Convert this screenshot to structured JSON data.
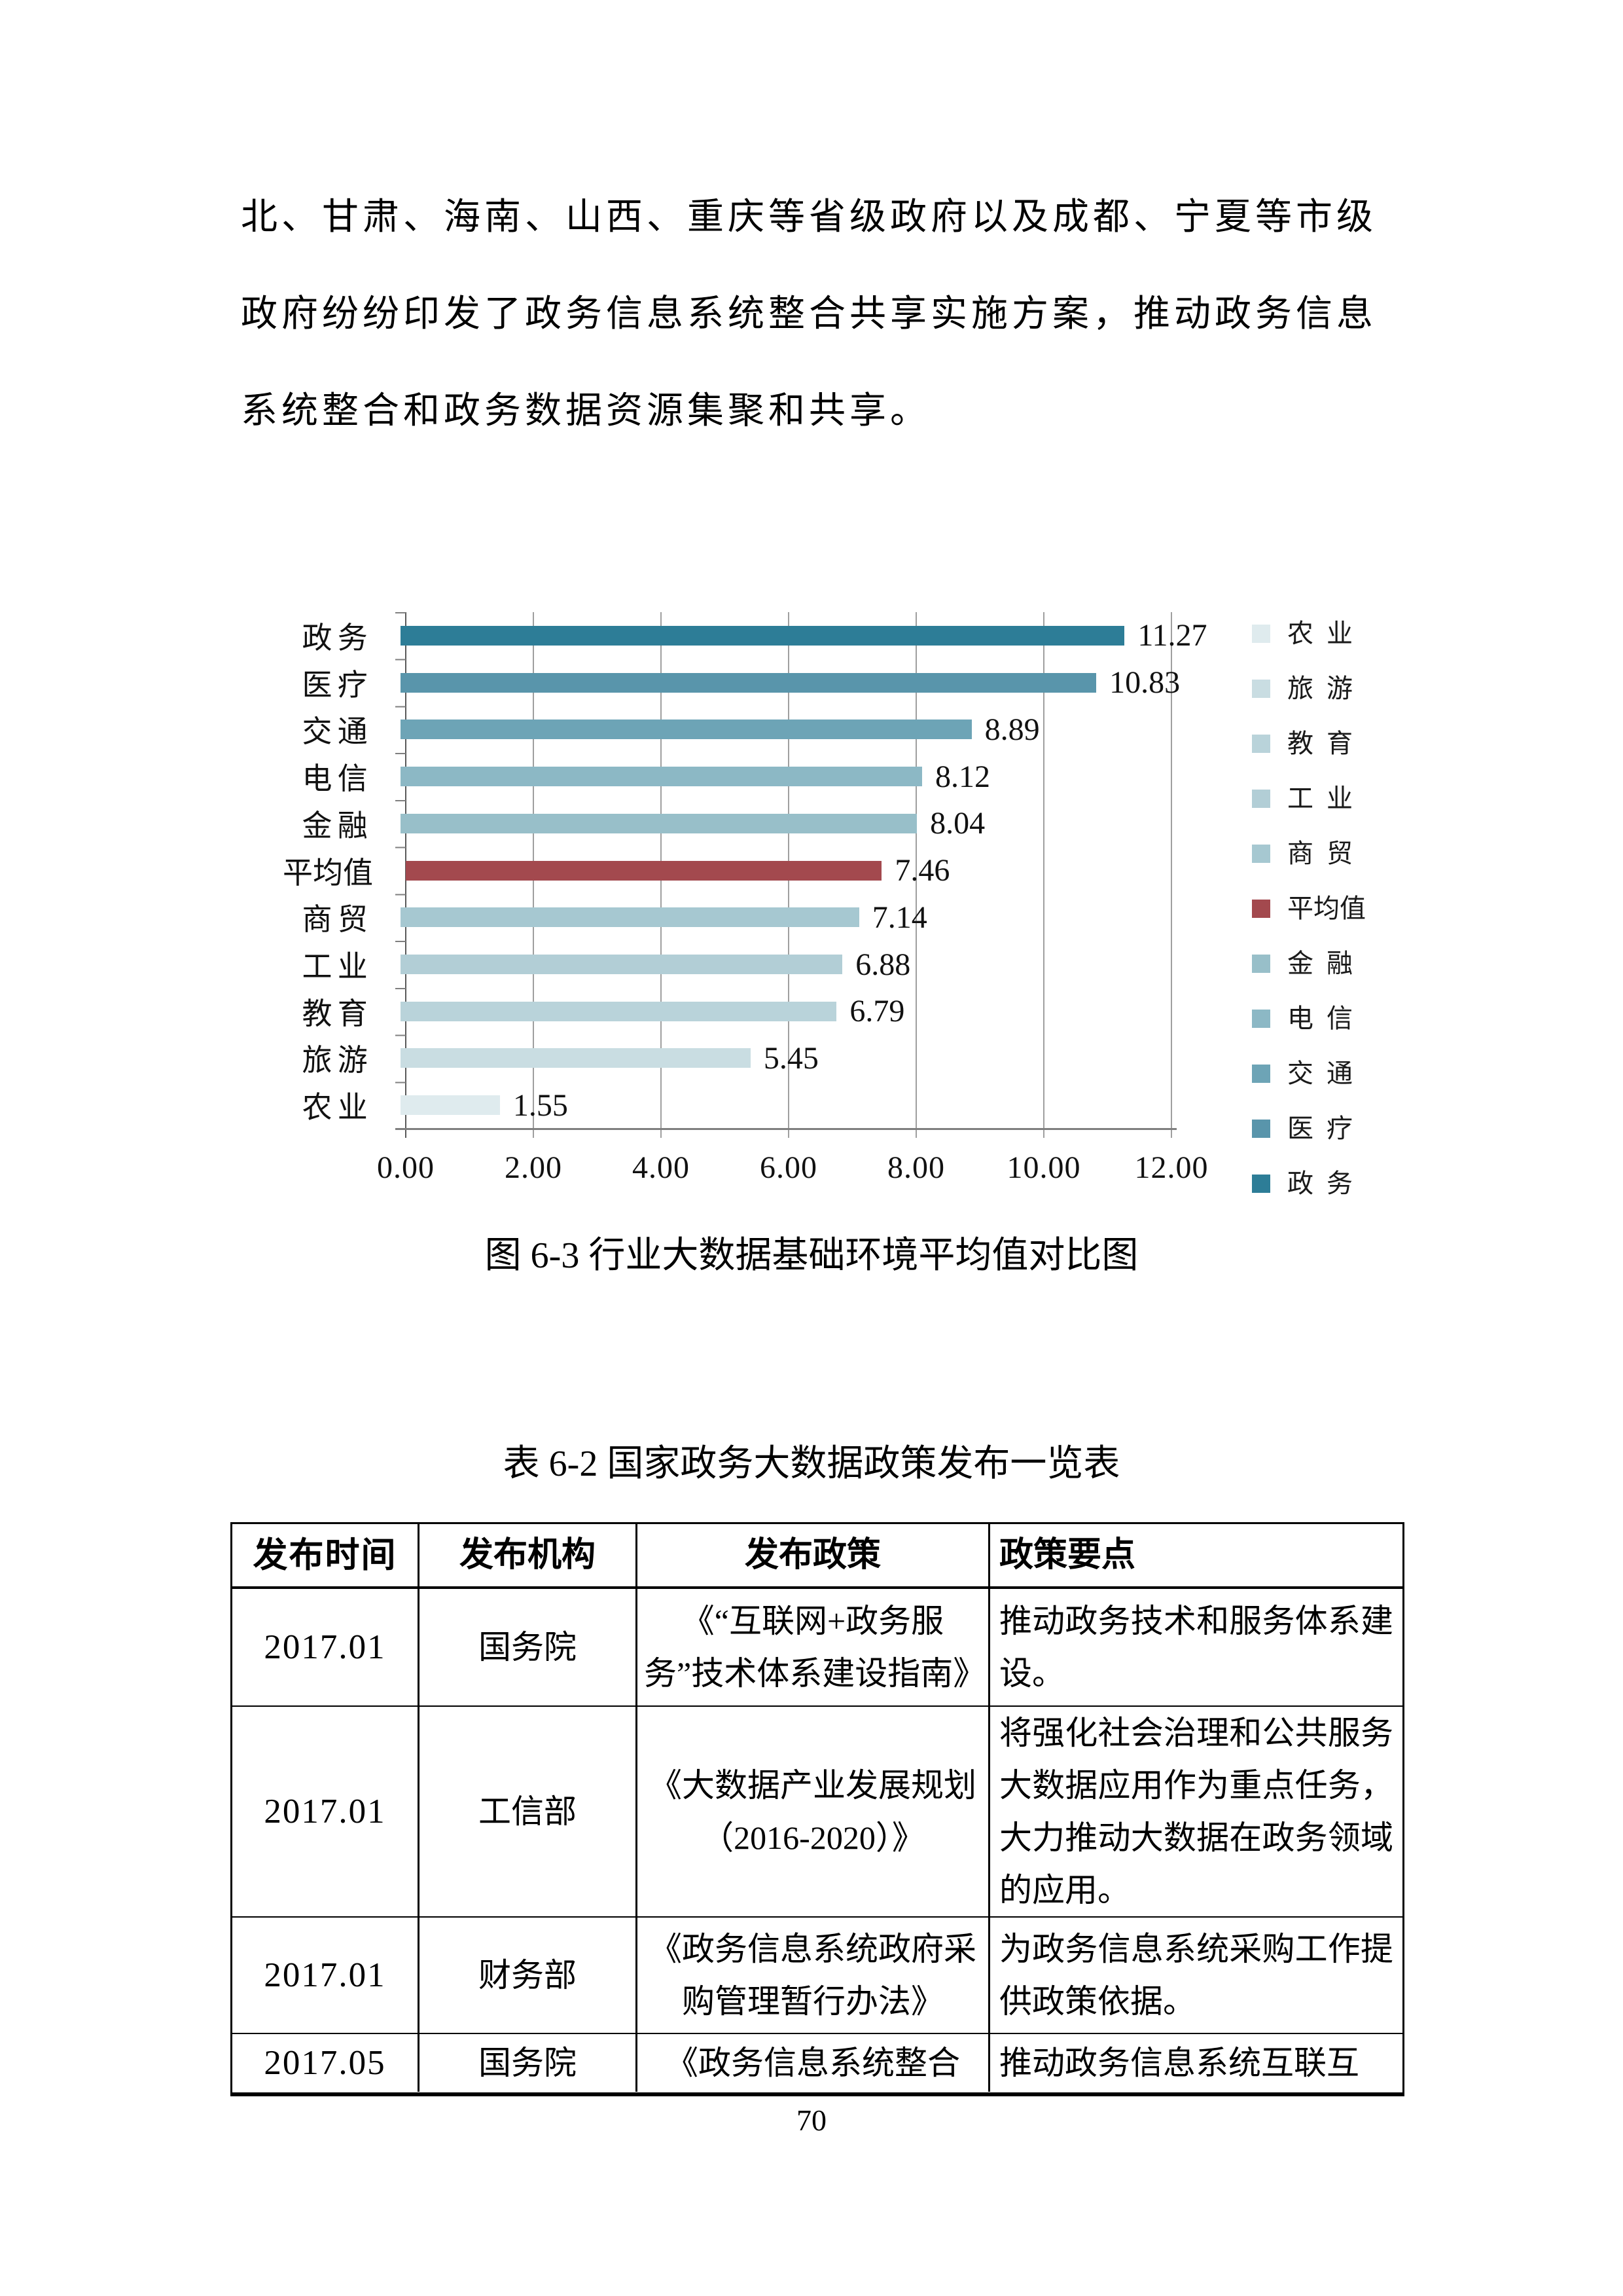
{
  "page": {
    "number": "70"
  },
  "paragraph": {
    "lines": [
      "北、甘肃、海南、山西、重庆等省级政府以及成都、宁夏等市级",
      "政府纷纷印发了政务信息系统整合共享实施方案，推动政务信息",
      "系统整合和政务数据资源集聚和共享。"
    ]
  },
  "chart_caption": "图 6-3 行业大数据基础环境平均值对比图",
  "table_title": "表 6-2 国家政务大数据政策发布一览表",
  "chart_data": {
    "type": "bar",
    "orientation": "horizontal",
    "title": "行业大数据基础环境平均值对比图",
    "categories": [
      "政务",
      "医疗",
      "交通",
      "电信",
      "金融",
      "平均值",
      "商贸",
      "工业",
      "教育",
      "旅游",
      "农业"
    ],
    "values": [
      11.27,
      10.83,
      8.89,
      8.12,
      8.04,
      7.46,
      7.14,
      6.88,
      6.79,
      5.45,
      1.55
    ],
    "value_labels": [
      "11.27",
      "10.83",
      "8.89",
      "8.12",
      "8.04",
      "7.46",
      "7.14",
      "6.88",
      "6.79",
      "5.45",
      "1.55"
    ],
    "bar_colors": [
      "#2d7d97",
      "#5995ab",
      "#6da4b6",
      "#8cb8c5",
      "#98bfc9",
      "#a3494e",
      "#a6c8d1",
      "#b2ced6",
      "#b9d3da",
      "#c9dde2",
      "#dfebee"
    ],
    "highlight_category": "平均值",
    "highlight_color": "#a3494e",
    "xlim": [
      0,
      12
    ],
    "x_ticks": [
      "0.00",
      "2.00",
      "4.00",
      "6.00",
      "8.00",
      "10.00",
      "12.00"
    ],
    "grid": true,
    "legend_position": "right",
    "legend": [
      {
        "label": "农业",
        "color": "#dfebee"
      },
      {
        "label": "旅游",
        "color": "#c9dde2"
      },
      {
        "label": "教育",
        "color": "#b9d3da"
      },
      {
        "label": "工业",
        "color": "#b2ced6"
      },
      {
        "label": "商贸",
        "color": "#a6c8d1"
      },
      {
        "label": "平均值",
        "color": "#a3494e"
      },
      {
        "label": "金融",
        "color": "#98bfc9"
      },
      {
        "label": "电信",
        "color": "#8cb8c5"
      },
      {
        "label": "交通",
        "color": "#6da4b6"
      },
      {
        "label": "医疗",
        "color": "#5995ab"
      },
      {
        "label": "政务",
        "color": "#2d7d97"
      }
    ],
    "gridline_color": "#9f9f9f",
    "axis_color": "#7f7f7f"
  },
  "table": {
    "headers": [
      "发布时间",
      "发布机构",
      "发布政策",
      "政策要点"
    ],
    "rows": [
      [
        "2017.01",
        "国务院",
        "《“互联网+政务服务”技术体系建设指南》",
        "推动政务技术和服务体系建设。"
      ],
      [
        "2017.01",
        "工信部",
        "《大数据产业发展规划（2016-2020）》",
        "将强化社会治理和公共服务大数据应用作为重点任务，大力推动大数据在政务领域的应用。"
      ],
      [
        "2017.01",
        "财务部",
        "《政务信息系统政府采购管理暂行办法》",
        "为政务信息系统采购工作提供政策依据。"
      ],
      [
        "2017.05",
        "国务院",
        "《政务信息系统整合",
        "推动政务信息系统互联互"
      ]
    ]
  }
}
